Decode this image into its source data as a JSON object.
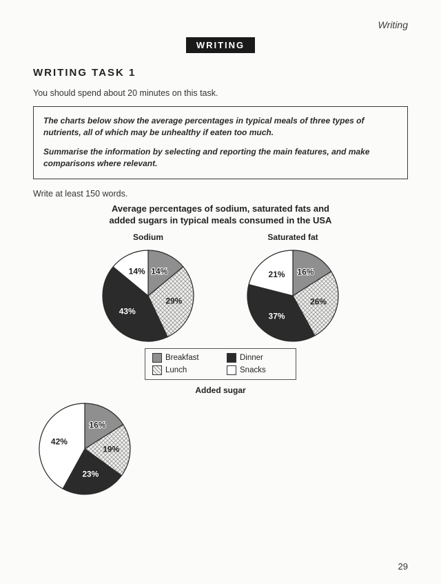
{
  "header_label": "Writing",
  "badge": "WRITING",
  "task_heading": "WRITING TASK 1",
  "intro": "You should spend about 20 minutes on this task.",
  "prompt_p1": "The charts below show the average percentages in typical meals of three types of nutrients, all of which may be unhealthy if eaten too much.",
  "prompt_p2": "Summarise the information by selecting and reporting the main features, and make comparisons where relevant.",
  "post_box": "Write at least 150 words.",
  "chart_title_l1": "Average percentages of sodium, saturated fats and",
  "chart_title_l2": "added sugars in typical meals consumed in the USA",
  "page_number": "29",
  "legend": {
    "breakfast": "Breakfast",
    "lunch": "Lunch",
    "dinner": "Dinner",
    "snacks": "Snacks"
  },
  "palette": {
    "breakfast": "#8f8f8f",
    "lunch_pattern_fg": "#9a9a9a",
    "lunch_pattern_bg": "#f2f2f0",
    "dinner": "#2b2b2b",
    "snacks": "#ffffff",
    "stroke": "#2a2a2a",
    "label_light": "#ffffff",
    "label_dark": "#222222",
    "label_outline": "#ffffff"
  },
  "charts": {
    "sodium": {
      "title": "Sodium",
      "type": "pie",
      "radius": 66,
      "slices": [
        {
          "key": "breakfast",
          "value": 14,
          "label": "14%",
          "label_color": "dark",
          "outline": true
        },
        {
          "key": "lunch",
          "value": 29,
          "label": "29%",
          "label_color": "dark"
        },
        {
          "key": "dinner",
          "value": 43,
          "label": "43%",
          "label_color": "light",
          "outline": true
        },
        {
          "key": "snacks",
          "value": 14,
          "label": "14%",
          "label_color": "dark"
        }
      ]
    },
    "satfat": {
      "title": "Saturated fat",
      "type": "pie",
      "radius": 66,
      "slices": [
        {
          "key": "breakfast",
          "value": 16,
          "label": "16%",
          "label_color": "dark",
          "outline": true
        },
        {
          "key": "lunch",
          "value": 26,
          "label": "26%",
          "label_color": "dark"
        },
        {
          "key": "dinner",
          "value": 37,
          "label": "37%",
          "label_color": "light",
          "outline": true
        },
        {
          "key": "snacks",
          "value": 21,
          "label": "21%",
          "label_color": "dark"
        }
      ]
    },
    "sugar": {
      "title": "Added sugar",
      "type": "pie",
      "radius": 66,
      "slices": [
        {
          "key": "breakfast",
          "value": 16,
          "label": "16%",
          "label_color": "dark",
          "outline": true
        },
        {
          "key": "lunch",
          "value": 19,
          "label": "19%",
          "label_color": "dark"
        },
        {
          "key": "dinner",
          "value": 23,
          "label": "23%",
          "label_color": "light",
          "outline": true
        },
        {
          "key": "snacks",
          "value": 42,
          "label": "42%",
          "label_color": "dark"
        }
      ]
    }
  }
}
